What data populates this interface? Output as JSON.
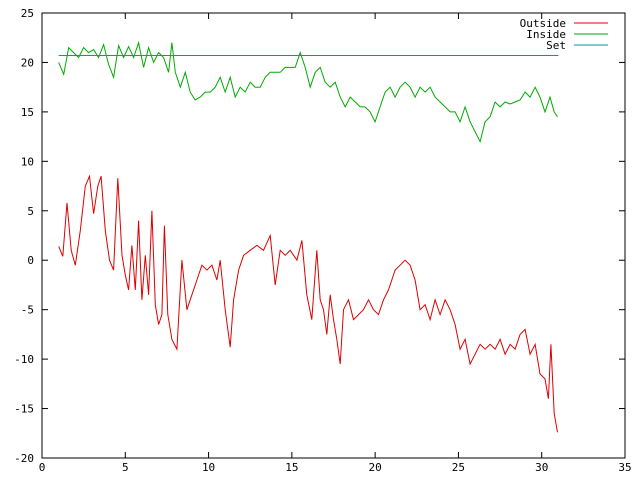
{
  "chart_data": {
    "type": "line",
    "title": "",
    "xlabel": "",
    "ylabel": "",
    "xlim": [
      0,
      35
    ],
    "ylim": [
      -20,
      25
    ],
    "xticks": [
      0,
      5,
      10,
      15,
      20,
      25,
      30,
      35
    ],
    "yticks": [
      -20,
      -15,
      -10,
      -5,
      0,
      5,
      10,
      15,
      20,
      25
    ],
    "grid": false,
    "legend": {
      "placement": "top-right"
    },
    "series": [
      {
        "name": "Outside",
        "color": "#dd0000",
        "points": [
          [
            1.0,
            1.4
          ],
          [
            1.25,
            0.4
          ],
          [
            1.5,
            5.8
          ],
          [
            1.75,
            1.0
          ],
          [
            2.0,
            -0.5
          ],
          [
            2.3,
            3.0
          ],
          [
            2.6,
            7.5
          ],
          [
            2.85,
            8.5
          ],
          [
            3.1,
            4.7
          ],
          [
            3.35,
            7.5
          ],
          [
            3.55,
            8.5
          ],
          [
            3.8,
            3.0
          ],
          [
            4.05,
            0.0
          ],
          [
            4.3,
            -1.0
          ],
          [
            4.55,
            8.3
          ],
          [
            4.8,
            0.5
          ],
          [
            5.0,
            -1.5
          ],
          [
            5.2,
            -3.0
          ],
          [
            5.4,
            1.5
          ],
          [
            5.6,
            -3.0
          ],
          [
            5.8,
            4.0
          ],
          [
            6.0,
            -4.0
          ],
          [
            6.2,
            0.5
          ],
          [
            6.4,
            -3.5
          ],
          [
            6.6,
            5.0
          ],
          [
            6.8,
            -4.5
          ],
          [
            7.0,
            -6.5
          ],
          [
            7.2,
            -5.5
          ],
          [
            7.35,
            3.5
          ],
          [
            7.55,
            -5.5
          ],
          [
            7.8,
            -8.0
          ],
          [
            8.1,
            -9.0
          ],
          [
            8.4,
            0.0
          ],
          [
            8.7,
            -5.0
          ],
          [
            9.0,
            -3.5
          ],
          [
            9.3,
            -2.0
          ],
          [
            9.6,
            -0.5
          ],
          [
            9.9,
            -1.0
          ],
          [
            10.2,
            -0.5
          ],
          [
            10.5,
            -2.0
          ],
          [
            10.7,
            0.0
          ],
          [
            11.0,
            -5.0
          ],
          [
            11.3,
            -8.8
          ],
          [
            11.5,
            -4.0
          ],
          [
            11.8,
            -1.0
          ],
          [
            12.1,
            0.5
          ],
          [
            12.5,
            1.0
          ],
          [
            12.9,
            1.5
          ],
          [
            13.3,
            1.0
          ],
          [
            13.7,
            2.5
          ],
          [
            14.0,
            -2.5
          ],
          [
            14.3,
            1.0
          ],
          [
            14.6,
            0.5
          ],
          [
            14.9,
            1.0
          ],
          [
            15.3,
            0.0
          ],
          [
            15.6,
            2.0
          ],
          [
            15.9,
            -3.5
          ],
          [
            16.2,
            -6.0
          ],
          [
            16.5,
            1.0
          ],
          [
            16.7,
            -4.0
          ],
          [
            16.9,
            -5.0
          ],
          [
            17.1,
            -7.5
          ],
          [
            17.3,
            -3.5
          ],
          [
            17.5,
            -6.0
          ],
          [
            17.7,
            -8.0
          ],
          [
            17.9,
            -10.5
          ],
          [
            18.1,
            -5.0
          ],
          [
            18.4,
            -4.0
          ],
          [
            18.7,
            -6.0
          ],
          [
            19.0,
            -5.5
          ],
          [
            19.3,
            -5.0
          ],
          [
            19.6,
            -4.0
          ],
          [
            19.9,
            -5.0
          ],
          [
            20.2,
            -5.5
          ],
          [
            20.5,
            -4.0
          ],
          [
            20.8,
            -3.0
          ],
          [
            21.2,
            -1.0
          ],
          [
            21.5,
            -0.5
          ],
          [
            21.8,
            0.0
          ],
          [
            22.1,
            -0.5
          ],
          [
            22.4,
            -2.0
          ],
          [
            22.7,
            -5.0
          ],
          [
            23.0,
            -4.5
          ],
          [
            23.3,
            -6.0
          ],
          [
            23.6,
            -4.0
          ],
          [
            23.9,
            -5.5
          ],
          [
            24.2,
            -4.0
          ],
          [
            24.5,
            -5.0
          ],
          [
            24.8,
            -6.5
          ],
          [
            25.1,
            -9.0
          ],
          [
            25.4,
            -8.0
          ],
          [
            25.7,
            -10.5
          ],
          [
            26.0,
            -9.5
          ],
          [
            26.3,
            -8.5
          ],
          [
            26.6,
            -9.0
          ],
          [
            26.9,
            -8.5
          ],
          [
            27.2,
            -9.0
          ],
          [
            27.5,
            -8.0
          ],
          [
            27.8,
            -9.5
          ],
          [
            28.1,
            -8.5
          ],
          [
            28.4,
            -9.0
          ],
          [
            28.7,
            -7.5
          ],
          [
            29.0,
            -7.0
          ],
          [
            29.3,
            -9.5
          ],
          [
            29.6,
            -8.5
          ],
          [
            29.9,
            -11.5
          ],
          [
            30.2,
            -12.0
          ],
          [
            30.4,
            -14.0
          ],
          [
            30.55,
            -8.5
          ],
          [
            30.75,
            -15.5
          ],
          [
            30.95,
            -17.4
          ]
        ]
      },
      {
        "name": "Inside",
        "color": "#00aa00",
        "points": [
          [
            1.0,
            20.0
          ],
          [
            1.3,
            18.8
          ],
          [
            1.6,
            21.5
          ],
          [
            1.9,
            21.0
          ],
          [
            2.2,
            20.5
          ],
          [
            2.5,
            21.5
          ],
          [
            2.8,
            21.0
          ],
          [
            3.1,
            21.3
          ],
          [
            3.4,
            20.5
          ],
          [
            3.7,
            21.8
          ],
          [
            4.0,
            19.8
          ],
          [
            4.3,
            18.5
          ],
          [
            4.6,
            21.7
          ],
          [
            4.9,
            20.5
          ],
          [
            5.2,
            21.6
          ],
          [
            5.5,
            20.5
          ],
          [
            5.8,
            22.0
          ],
          [
            6.1,
            19.5
          ],
          [
            6.4,
            21.5
          ],
          [
            6.7,
            20.0
          ],
          [
            7.0,
            21.0
          ],
          [
            7.3,
            20.5
          ],
          [
            7.6,
            19.0
          ],
          [
            7.8,
            22.0
          ],
          [
            8.0,
            19.0
          ],
          [
            8.3,
            17.5
          ],
          [
            8.6,
            19.0
          ],
          [
            8.9,
            17.0
          ],
          [
            9.2,
            16.2
          ],
          [
            9.5,
            16.5
          ],
          [
            9.8,
            17.0
          ],
          [
            10.1,
            17.0
          ],
          [
            10.4,
            17.5
          ],
          [
            10.7,
            18.5
          ],
          [
            11.0,
            17.0
          ],
          [
            11.3,
            18.5
          ],
          [
            11.6,
            16.5
          ],
          [
            11.9,
            17.5
          ],
          [
            12.2,
            17.0
          ],
          [
            12.5,
            18.0
          ],
          [
            12.8,
            17.5
          ],
          [
            13.1,
            17.5
          ],
          [
            13.4,
            18.5
          ],
          [
            13.7,
            19.0
          ],
          [
            14.0,
            19.0
          ],
          [
            14.3,
            19.0
          ],
          [
            14.6,
            19.5
          ],
          [
            14.9,
            19.5
          ],
          [
            15.2,
            19.5
          ],
          [
            15.5,
            21.0
          ],
          [
            15.8,
            19.5
          ],
          [
            16.1,
            17.5
          ],
          [
            16.4,
            19.0
          ],
          [
            16.7,
            19.5
          ],
          [
            17.0,
            18.0
          ],
          [
            17.3,
            17.5
          ],
          [
            17.6,
            18.0
          ],
          [
            17.9,
            16.5
          ],
          [
            18.2,
            15.5
          ],
          [
            18.5,
            16.5
          ],
          [
            18.8,
            16.0
          ],
          [
            19.1,
            15.5
          ],
          [
            19.4,
            15.5
          ],
          [
            19.7,
            15.0
          ],
          [
            20.0,
            14.0
          ],
          [
            20.3,
            15.5
          ],
          [
            20.6,
            17.0
          ],
          [
            20.9,
            17.5
          ],
          [
            21.2,
            16.5
          ],
          [
            21.5,
            17.5
          ],
          [
            21.8,
            18.0
          ],
          [
            22.1,
            17.5
          ],
          [
            22.4,
            16.5
          ],
          [
            22.7,
            17.5
          ],
          [
            23.0,
            17.0
          ],
          [
            23.3,
            17.5
          ],
          [
            23.6,
            16.5
          ],
          [
            23.9,
            16.0
          ],
          [
            24.2,
            15.5
          ],
          [
            24.5,
            15.0
          ],
          [
            24.8,
            15.0
          ],
          [
            25.1,
            14.0
          ],
          [
            25.4,
            15.5
          ],
          [
            25.7,
            14.0
          ],
          [
            26.0,
            13.0
          ],
          [
            26.3,
            12.0
          ],
          [
            26.6,
            14.0
          ],
          [
            26.9,
            14.5
          ],
          [
            27.2,
            16.0
          ],
          [
            27.5,
            15.5
          ],
          [
            27.8,
            16.0
          ],
          [
            28.1,
            15.8
          ],
          [
            28.4,
            16.0
          ],
          [
            28.7,
            16.2
          ],
          [
            29.0,
            17.0
          ],
          [
            29.3,
            16.5
          ],
          [
            29.6,
            17.5
          ],
          [
            29.9,
            16.5
          ],
          [
            30.2,
            15.0
          ],
          [
            30.5,
            16.5
          ],
          [
            30.75,
            15.0
          ],
          [
            30.95,
            14.5
          ]
        ]
      },
      {
        "name": "Set",
        "color": "#009999",
        "points": [
          [
            1.0,
            20.7
          ],
          [
            31.0,
            20.7
          ]
        ]
      }
    ]
  }
}
